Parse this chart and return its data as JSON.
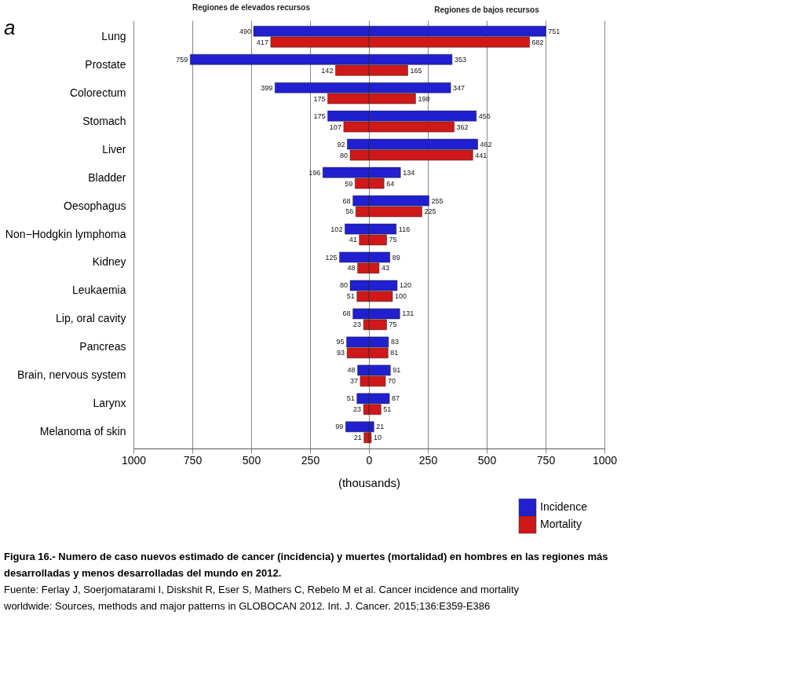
{
  "chart_data": [
    {
      "type": "bar",
      "orientation": "horizontal",
      "title": "Regiones de elevados recursos",
      "xlabel": "(thousands)",
      "categories": [
        "Lung",
        "Prostate",
        "Colorectum",
        "Stomach",
        "Liver",
        "Bladder",
        "Oesophagus",
        "Non−Hodgkin lymphoma",
        "Kidney",
        "Leukaemia",
        "Lip, oral cavity",
        "Pancreas",
        "Brain, nervous system",
        "Larynx",
        "Melanoma of skin"
      ],
      "series": [
        {
          "name": "Incidence",
          "color": "#2020d0",
          "values": [
            490,
            759,
            399,
            175,
            92,
            196,
            68,
            102,
            125,
            80,
            68,
            95,
            48,
            51,
            99
          ]
        },
        {
          "name": "Mortality",
          "color": "#d01818",
          "values": [
            417,
            142,
            175,
            107,
            80,
            59,
            56,
            41,
            48,
            51,
            23,
            93,
            37,
            23,
            21
          ]
        }
      ],
      "xlim": [
        1000,
        0
      ],
      "xticks": [
        1000,
        750,
        500,
        250
      ],
      "grid": "x",
      "data_labels": true,
      "legend": "bottom right",
      "annotations": [
        "a",
        "Figura 16.- Numero de caso nuevos estimado de cancer (incidencia) y muertes (mortalidad) en hombres en las regiones más desarrolladas y menos desarrolladas del mundo en 2012.",
        "Fuente: Ferlay J, Soerjomatarami I, Diskshit R, Eser S, Mathers C, Rebelo M et al. Cancer incidence and mortality worldwide: Sources, methods and major patterns in GLOBOCAN 2012. Int. J. Cancer. 2015;136:E359-E386"
      ]
    },
    {
      "type": "bar",
      "orientation": "horizontal",
      "title": "Regiones de bajos recursos",
      "categories": [
        "Lung",
        "Prostate",
        "Colorectum",
        "Stomach",
        "Liver",
        "Bladder",
        "Oesophagus",
        "Non−Hodgkin lymphoma",
        "Kidney",
        "Leukaemia",
        "Lip, oral cavity",
        "Pancreas",
        "Brain, nervous system",
        "Larynx",
        "Melanoma of skin"
      ],
      "series": [
        {
          "name": "Incidence",
          "color": "#2020d0",
          "values": [
            751,
            353,
            347,
            456,
            462,
            134,
            255,
            116,
            89,
            120,
            131,
            83,
            91,
            87,
            21
          ]
        },
        {
          "name": "Mortality",
          "color": "#d01818",
          "values": [
            682,
            165,
            198,
            362,
            441,
            64,
            225,
            75,
            43,
            100,
            75,
            81,
            70,
            51,
            10
          ]
        }
      ],
      "xlim": [
        0,
        1000
      ],
      "xticks": [
        0,
        250,
        500,
        750,
        1000
      ],
      "grid": "x",
      "data_labels": true,
      "tick_labels": "x"
    }
  ]
}
